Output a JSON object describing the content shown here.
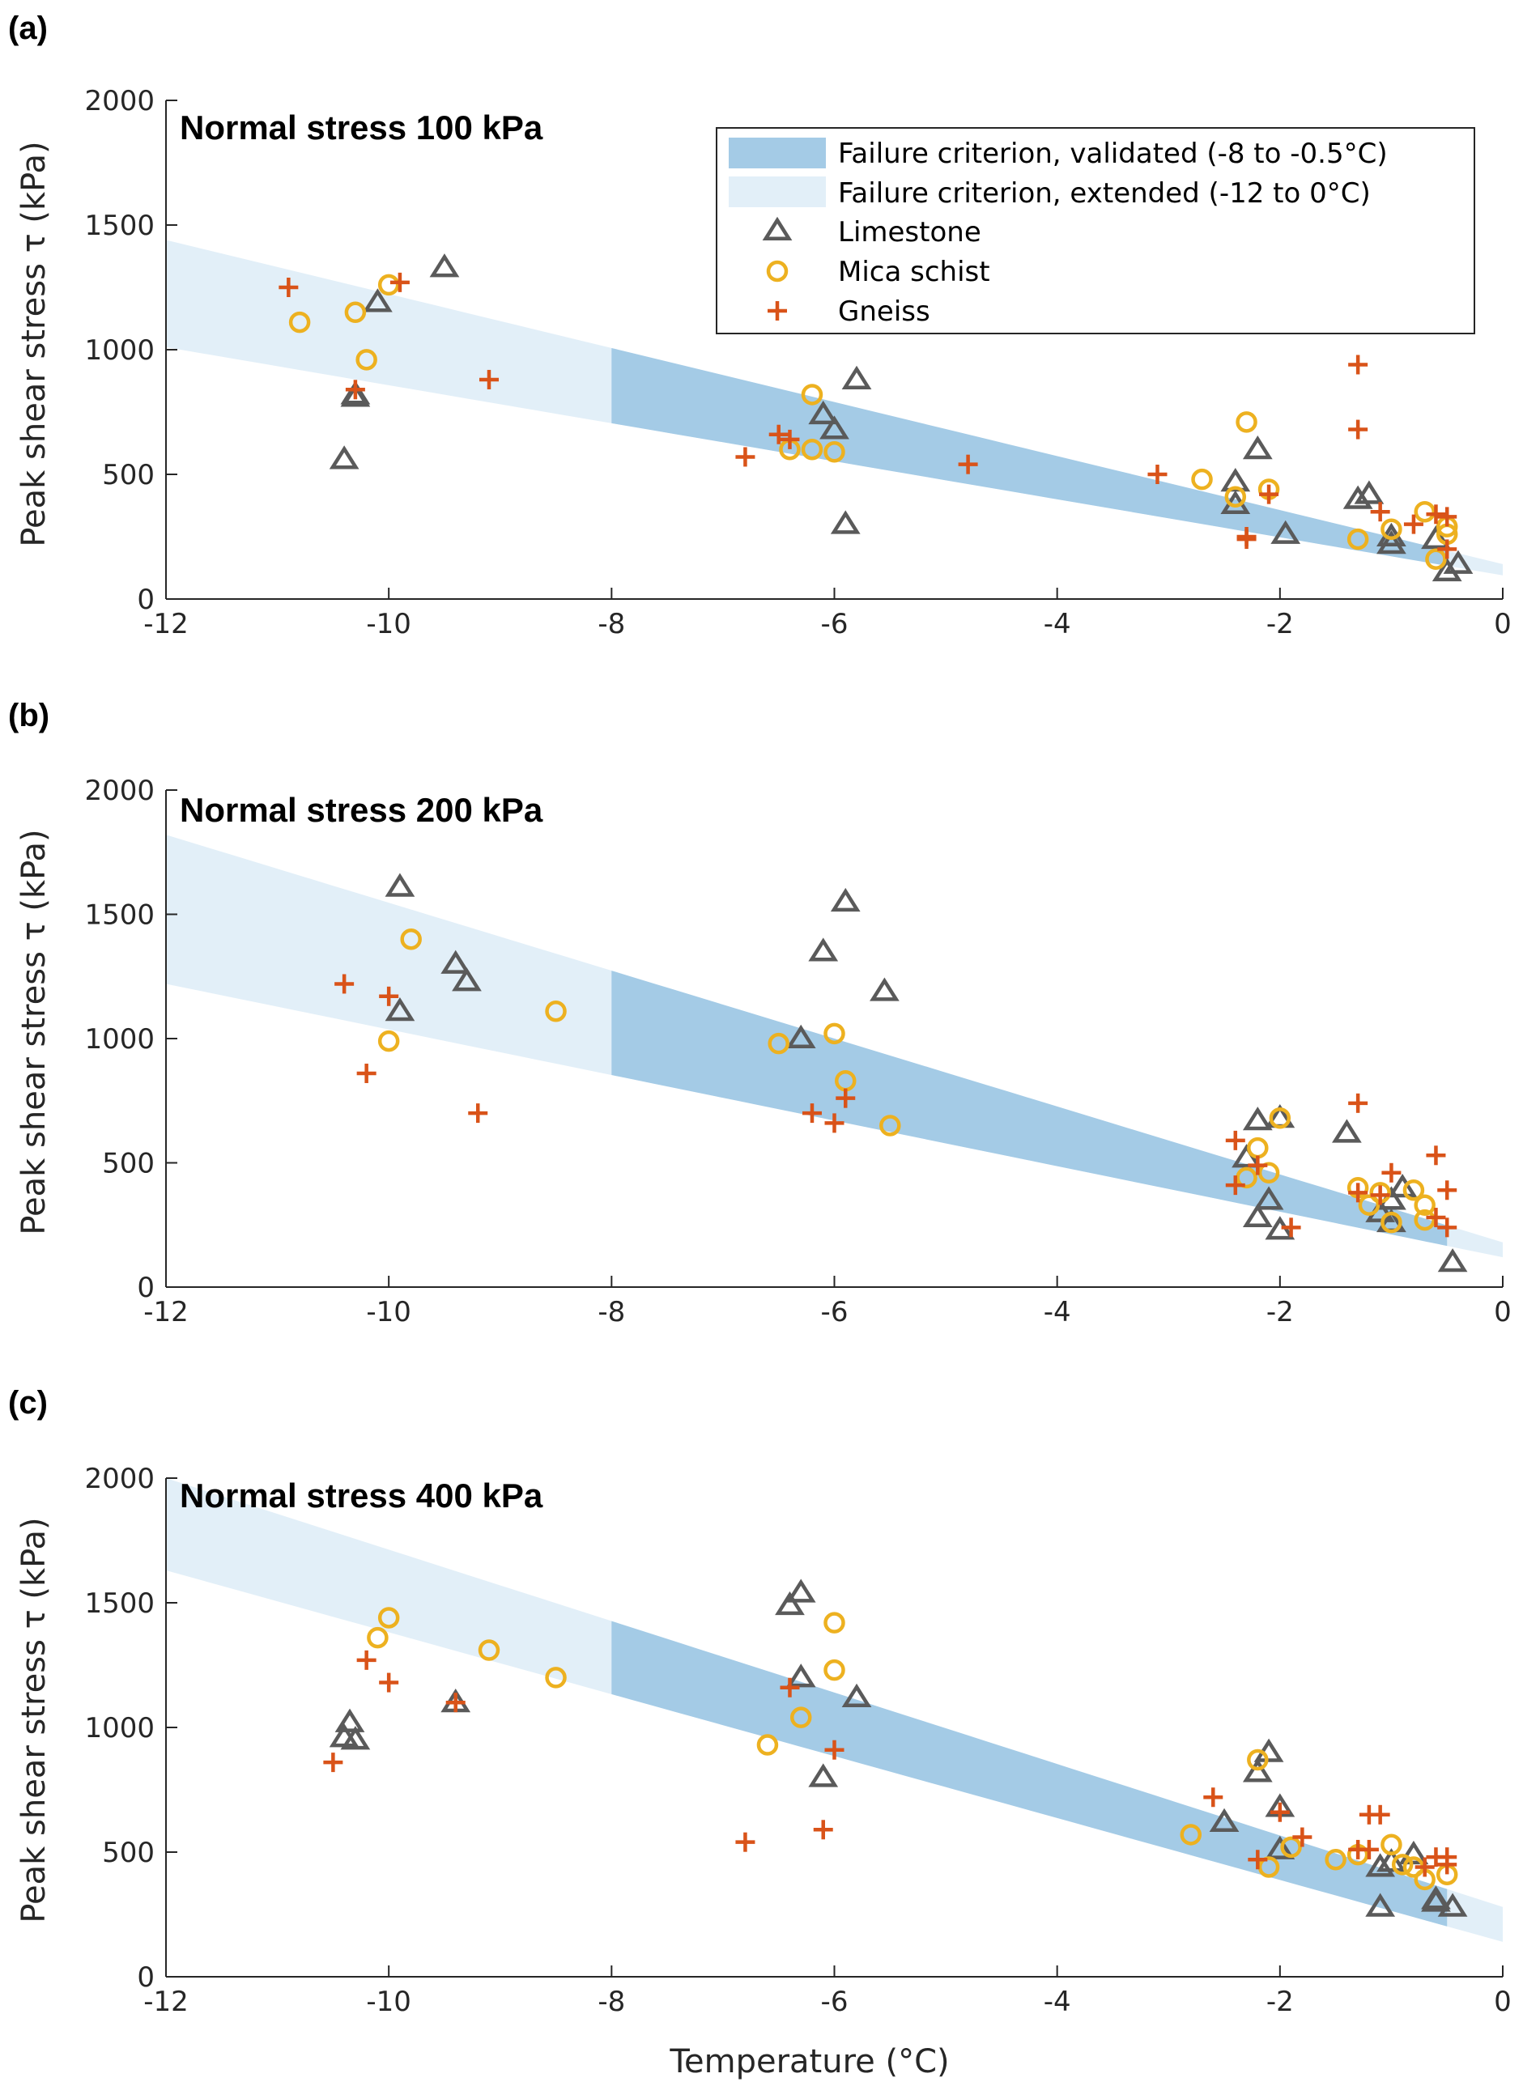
{
  "figure": {
    "xlabel": "Temperature (°C)",
    "ylabel": "Peak shear stress τ (kPa)"
  },
  "legend": {
    "entries": [
      {
        "label": "Failure criterion, validated (-8 to -0.5°C)",
        "kind": "band",
        "color": "#a4cbe6"
      },
      {
        "label": "Failure criterion, extended (-12 to 0°C)",
        "kind": "band",
        "color": "#e2eff8"
      },
      {
        "label": "Limestone",
        "kind": "triangle",
        "color": "#5a5a5a"
      },
      {
        "label": "Mica schist",
        "kind": "circle",
        "color": "#edb120"
      },
      {
        "label": "Gneiss",
        "kind": "plus",
        "color": "#d95319"
      }
    ]
  },
  "colors": {
    "validated": "#a4cbe6",
    "extended": "#e2eff8",
    "limestone": "#5a5a5a",
    "mica": "#edb120",
    "gneiss": "#d95319",
    "axis": "#262626"
  },
  "chart_data": [
    {
      "type": "scatter",
      "panel": "(a)",
      "title": "Normal stress 100 kPa",
      "xlim": [
        -12,
        0
      ],
      "ylim": [
        0,
        2000
      ],
      "xticks": [
        -12,
        -10,
        -8,
        -6,
        -4,
        -2,
        0
      ],
      "yticks": [
        0,
        500,
        1000,
        1500,
        2000
      ],
      "band": {
        "x": [
          -12,
          0
        ],
        "upper": [
          1440,
          140
        ],
        "lower": [
          1010,
          95
        ],
        "validated_x": [
          -8,
          -0.5
        ]
      },
      "series": [
        {
          "name": "Limestone",
          "marker": "triangle",
          "points": [
            [
              -10.4,
              560
            ],
            [
              -10.3,
              820
            ],
            [
              -10.3,
              810
            ],
            [
              -10.1,
              1190
            ],
            [
              -9.5,
              1330
            ],
            [
              -6.1,
              740
            ],
            [
              -6.0,
              680
            ],
            [
              -5.9,
              300
            ],
            [
              -5.8,
              880
            ],
            [
              -2.4,
              470
            ],
            [
              -2.4,
              380
            ],
            [
              -2.2,
              600
            ],
            [
              -1.95,
              260
            ],
            [
              -1.3,
              400
            ],
            [
              -1.2,
              420
            ],
            [
              -1.0,
              220
            ],
            [
              -1.0,
              250
            ],
            [
              -0.6,
              240
            ],
            [
              -0.5,
              110
            ],
            [
              -0.4,
              140
            ]
          ]
        },
        {
          "name": "Mica schist",
          "marker": "circle",
          "points": [
            [
              -10.8,
              1110
            ],
            [
              -10.3,
              1150
            ],
            [
              -10.2,
              960
            ],
            [
              -10.0,
              1260
            ],
            [
              -6.2,
              820
            ],
            [
              -6.4,
              600
            ],
            [
              -6.2,
              600
            ],
            [
              -6.0,
              590
            ],
            [
              -2.7,
              480
            ],
            [
              -2.4,
              410
            ],
            [
              -2.3,
              710
            ],
            [
              -2.1,
              440
            ],
            [
              -1.3,
              240
            ],
            [
              -1.0,
              280
            ],
            [
              -0.7,
              350
            ],
            [
              -0.6,
              160
            ],
            [
              -0.5,
              290
            ],
            [
              -0.5,
              260
            ]
          ]
        },
        {
          "name": "Gneiss",
          "marker": "plus",
          "points": [
            [
              -10.9,
              1250
            ],
            [
              -10.3,
              840
            ],
            [
              -9.9,
              1270
            ],
            [
              -9.1,
              880
            ],
            [
              -6.8,
              570
            ],
            [
              -6.5,
              660
            ],
            [
              -6.4,
              640
            ],
            [
              -4.8,
              540
            ],
            [
              -3.1,
              500
            ],
            [
              -2.3,
              240
            ],
            [
              -2.3,
              250
            ],
            [
              -2.1,
              420
            ],
            [
              -1.3,
              940
            ],
            [
              -1.3,
              680
            ],
            [
              -1.1,
              350
            ],
            [
              -0.8,
              300
            ],
            [
              -0.6,
              340
            ],
            [
              -0.5,
              330
            ],
            [
              -0.5,
              200
            ]
          ]
        }
      ]
    },
    {
      "type": "scatter",
      "panel": "(b)",
      "title": "Normal stress 200 kPa",
      "xlim": [
        -12,
        0
      ],
      "ylim": [
        0,
        2000
      ],
      "xticks": [
        -12,
        -10,
        -8,
        -6,
        -4,
        -2,
        0
      ],
      "yticks": [
        0,
        500,
        1000,
        1500,
        2000
      ],
      "band": {
        "x": [
          -12,
          0
        ],
        "upper": [
          1820,
          180
        ],
        "lower": [
          1220,
          120
        ],
        "validated_x": [
          -8,
          -0.5
        ]
      },
      "series": [
        {
          "name": "Limestone",
          "marker": "triangle",
          "points": [
            [
              -9.9,
              1610
            ],
            [
              -9.9,
              1110
            ],
            [
              -9.4,
              1300
            ],
            [
              -9.3,
              1230
            ],
            [
              -6.3,
              1000
            ],
            [
              -6.1,
              1350
            ],
            [
              -5.9,
              1550
            ],
            [
              -5.55,
              1190
            ],
            [
              -2.2,
              670
            ],
            [
              -2.2,
              280
            ],
            [
              -2.1,
              350
            ],
            [
              -2.0,
              680
            ],
            [
              -2.0,
              230
            ],
            [
              -2.3,
              520
            ],
            [
              -1.4,
              620
            ],
            [
              -1.1,
              300
            ],
            [
              -1.0,
              350
            ],
            [
              -1.0,
              260
            ],
            [
              -0.9,
              400
            ],
            [
              -0.45,
              100
            ]
          ]
        },
        {
          "name": "Mica schist",
          "marker": "circle",
          "points": [
            [
              -9.8,
              1400
            ],
            [
              -10.0,
              990
            ],
            [
              -8.5,
              1110
            ],
            [
              -6.5,
              980
            ],
            [
              -6.0,
              1020
            ],
            [
              -5.9,
              830
            ],
            [
              -5.5,
              650
            ],
            [
              -2.3,
              440
            ],
            [
              -2.2,
              560
            ],
            [
              -2.1,
              460
            ],
            [
              -2.0,
              680
            ],
            [
              -1.3,
              400
            ],
            [
              -1.2,
              330
            ],
            [
              -1.1,
              380
            ],
            [
              -1.0,
              260
            ],
            [
              -0.8,
              390
            ],
            [
              -0.7,
              330
            ],
            [
              -0.7,
              270
            ]
          ]
        },
        {
          "name": "Gneiss",
          "marker": "plus",
          "points": [
            [
              -10.4,
              1220
            ],
            [
              -10.0,
              1170
            ],
            [
              -10.2,
              860
            ],
            [
              -9.2,
              700
            ],
            [
              -6.2,
              700
            ],
            [
              -6.0,
              660
            ],
            [
              -5.9,
              760
            ],
            [
              -2.4,
              590
            ],
            [
              -2.4,
              410
            ],
            [
              -2.2,
              490
            ],
            [
              -1.9,
              240
            ],
            [
              -1.3,
              740
            ],
            [
              -1.3,
              380
            ],
            [
              -1.1,
              370
            ],
            [
              -1.0,
              460
            ],
            [
              -0.6,
              530
            ],
            [
              -0.5,
              390
            ],
            [
              -0.5,
              240
            ],
            [
              -0.6,
              280
            ]
          ]
        }
      ]
    },
    {
      "type": "scatter",
      "panel": "(c)",
      "title": "Normal stress 400 kPa",
      "xlim": [
        -12,
        0
      ],
      "ylim": [
        0,
        2000
      ],
      "xticks": [
        -12,
        -10,
        -8,
        -6,
        -4,
        -2,
        0
      ],
      "yticks": [
        0,
        500,
        1000,
        1500,
        2000
      ],
      "band": {
        "x": [
          -12,
          0
        ],
        "upper": [
          2000,
          280
        ],
        "lower": [
          1630,
          140
        ],
        "validated_x": [
          -8,
          -0.5
        ],
        "cap": 2000
      },
      "series": [
        {
          "name": "Limestone",
          "marker": "triangle",
          "points": [
            [
              -10.4,
              960
            ],
            [
              -10.35,
              1020
            ],
            [
              -10.3,
              950
            ],
            [
              -9.4,
              1100
            ],
            [
              -6.4,
              1490
            ],
            [
              -6.3,
              1540
            ],
            [
              -6.3,
              1200
            ],
            [
              -6.1,
              800
            ],
            [
              -5.8,
              1120
            ],
            [
              -2.5,
              620
            ],
            [
              -2.2,
              820
            ],
            [
              -2.1,
              900
            ],
            [
              -2.0,
              680
            ],
            [
              -2.0,
              510
            ],
            [
              -1.1,
              280
            ],
            [
              -1.1,
              440
            ],
            [
              -1.0,
              460
            ],
            [
              -0.8,
              490
            ],
            [
              -0.6,
              310
            ],
            [
              -0.6,
              300
            ],
            [
              -0.45,
              280
            ]
          ]
        },
        {
          "name": "Mica schist",
          "marker": "circle",
          "points": [
            [
              -10.1,
              1360
            ],
            [
              -10.0,
              1440
            ],
            [
              -9.1,
              1310
            ],
            [
              -8.5,
              1200
            ],
            [
              -6.6,
              930
            ],
            [
              -6.3,
              1040
            ],
            [
              -6.0,
              1420
            ],
            [
              -6.0,
              1230
            ],
            [
              -2.8,
              570
            ],
            [
              -2.2,
              870
            ],
            [
              -2.1,
              440
            ],
            [
              -1.9,
              520
            ],
            [
              -1.5,
              470
            ],
            [
              -1.3,
              490
            ],
            [
              -1.0,
              530
            ],
            [
              -0.9,
              450
            ],
            [
              -0.8,
              440
            ],
            [
              -0.7,
              390
            ],
            [
              -0.5,
              410
            ]
          ]
        },
        {
          "name": "Gneiss",
          "marker": "plus",
          "points": [
            [
              -10.5,
              860
            ],
            [
              -10.2,
              1270
            ],
            [
              -10.0,
              1180
            ],
            [
              -9.4,
              1100
            ],
            [
              -6.8,
              540
            ],
            [
              -6.4,
              1160
            ],
            [
              -6.1,
              590
            ],
            [
              -6.0,
              910
            ],
            [
              -2.6,
              720
            ],
            [
              -2.2,
              470
            ],
            [
              -2.0,
              660
            ],
            [
              -1.8,
              560
            ],
            [
              -1.3,
              510
            ],
            [
              -1.2,
              510
            ],
            [
              -1.2,
              650
            ],
            [
              -1.1,
              650
            ],
            [
              -0.7,
              440
            ],
            [
              -0.6,
              480
            ],
            [
              -0.5,
              480
            ],
            [
              -0.5,
              450
            ]
          ]
        }
      ]
    }
  ]
}
